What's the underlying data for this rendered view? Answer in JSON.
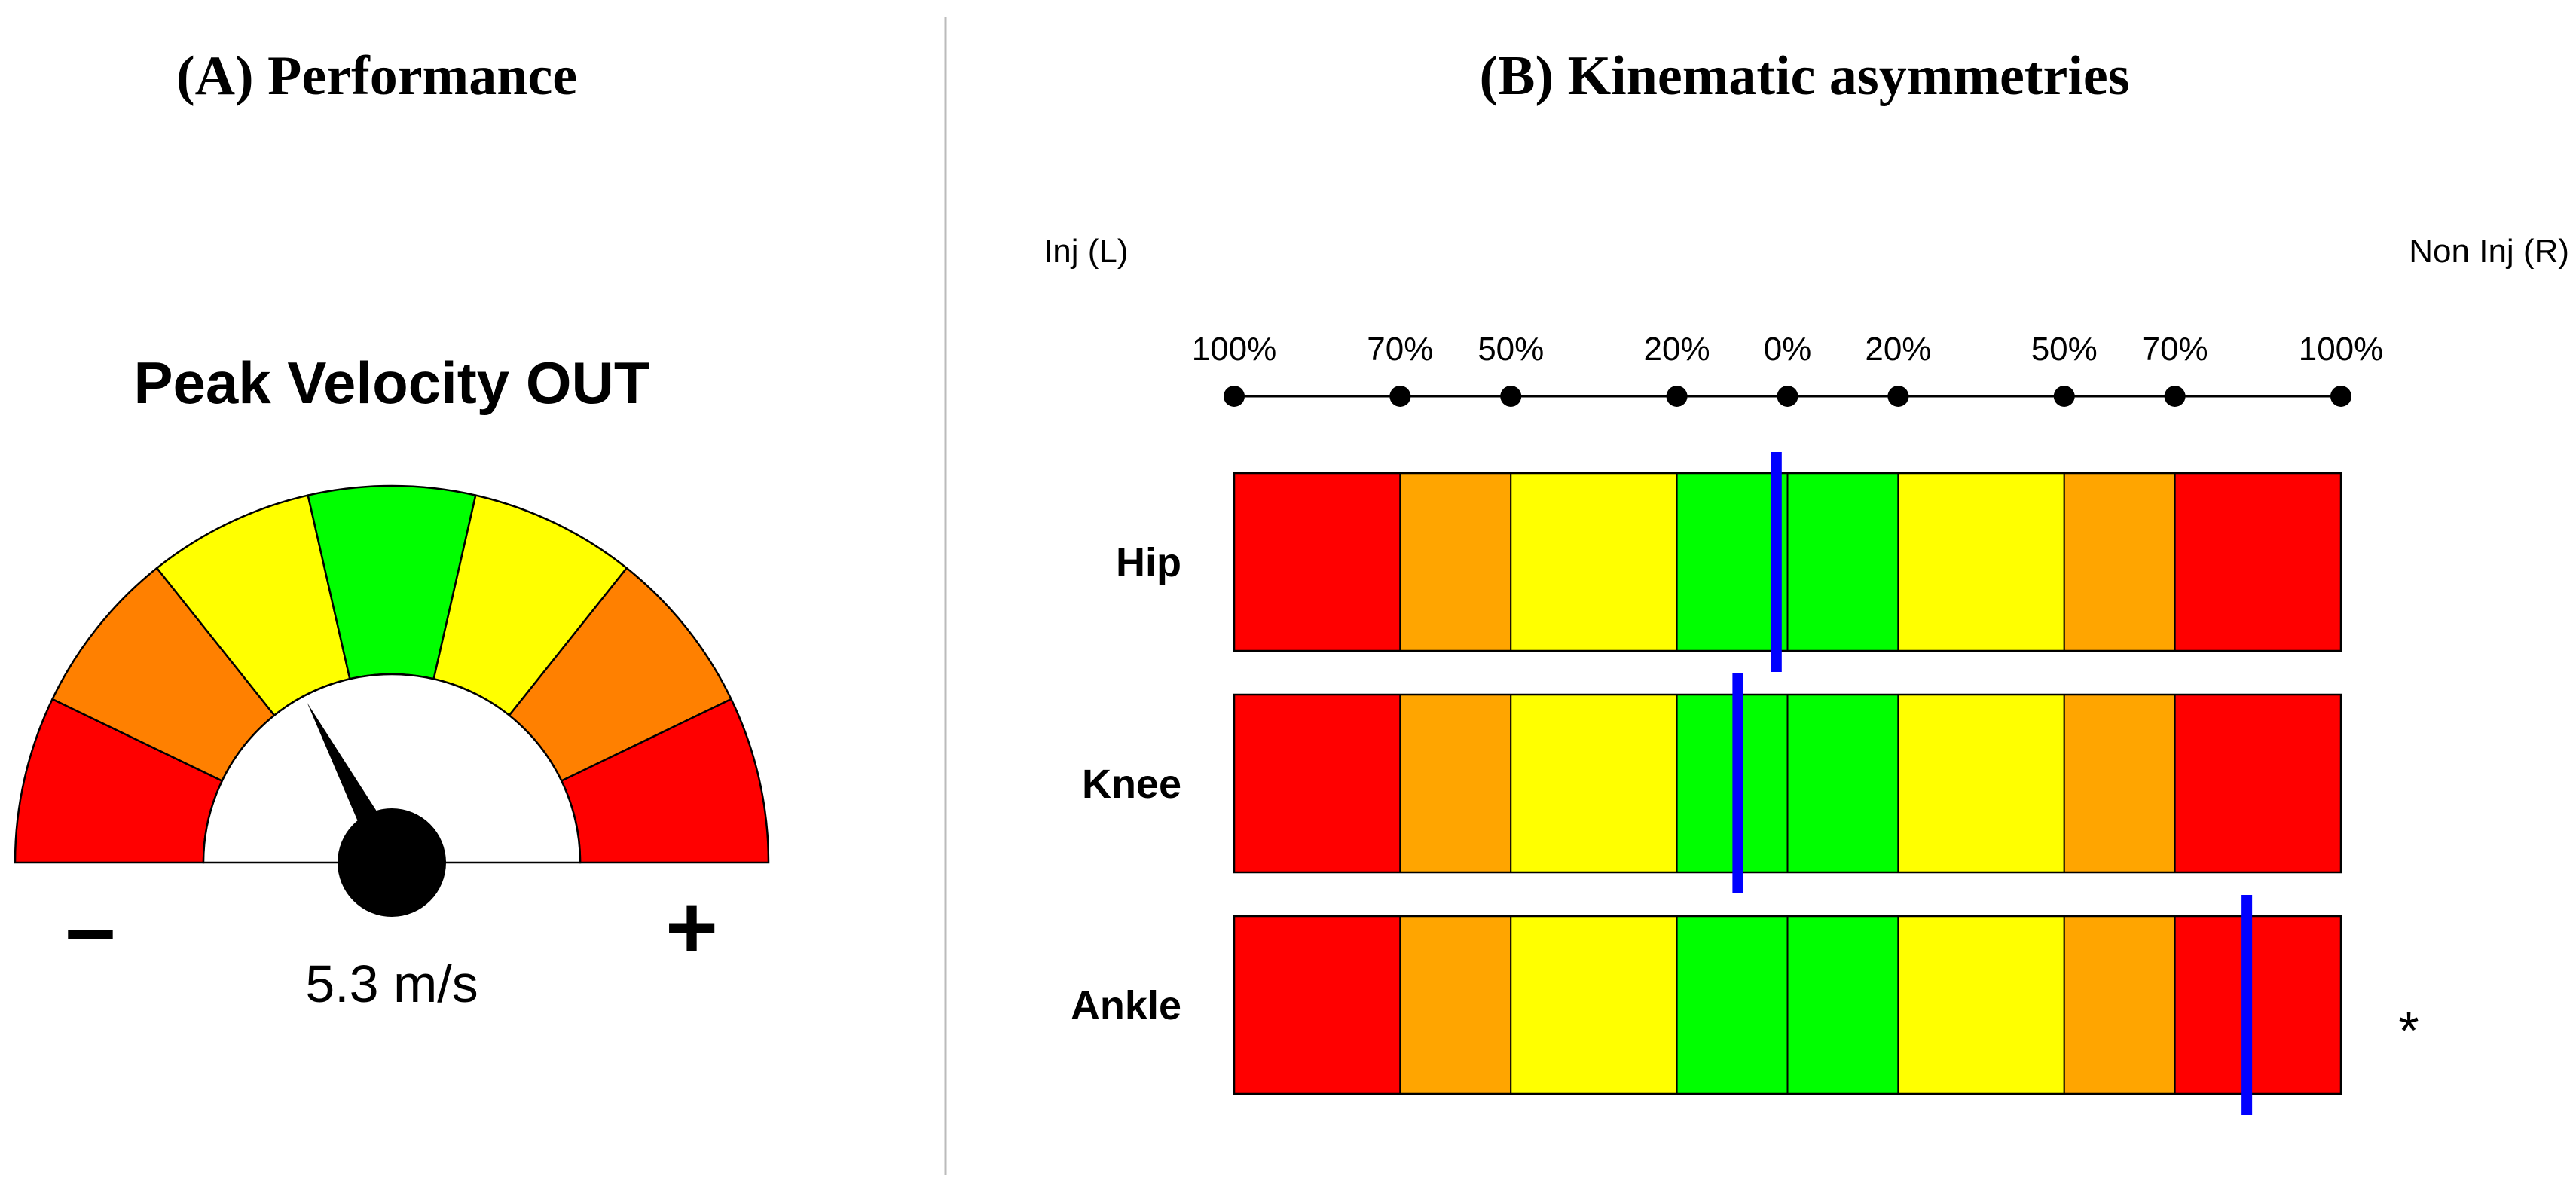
{
  "panels": {
    "a_title": "(A) Performance",
    "b_title": "(B) Kinematic asymmetries"
  },
  "colors": {
    "red": "#ff0000",
    "orange": "#ff8000",
    "orange_bar": "#ffa500",
    "yellow": "#ffff00",
    "green": "#00ff00",
    "marker": "#0000ff",
    "divider": "#bbbbbb"
  },
  "gauge": {
    "title": "Peak Velocity OUT",
    "minus_label": "–",
    "plus_label": "+",
    "readout": "5.3 m/s",
    "segments": [
      "red",
      "orange",
      "yellow",
      "green",
      "yellow",
      "orange",
      "red"
    ],
    "needle_fraction": 0.345
  },
  "chart_data": {
    "type": "asymmetry-bars",
    "title": "(B) Kinematic asymmetries",
    "left_side_label": "Inj (L)",
    "right_side_label": "Non Inj (R)",
    "scale_ticks": [
      {
        "label": "100%",
        "value": -100
      },
      {
        "label": "70%",
        "value": -70
      },
      {
        "label": "50%",
        "value": -50
      },
      {
        "label": "20%",
        "value": -20
      },
      {
        "label": "0%",
        "value": 0
      },
      {
        "label": "20%",
        "value": 20
      },
      {
        "label": "50%",
        "value": 50
      },
      {
        "label": "70%",
        "value": 70
      },
      {
        "label": "100%",
        "value": 100
      }
    ],
    "zones": [
      {
        "from": -100,
        "to": -70,
        "color": "red"
      },
      {
        "from": -70,
        "to": -50,
        "color": "orange_bar"
      },
      {
        "from": -50,
        "to": -20,
        "color": "yellow"
      },
      {
        "from": -20,
        "to": 0,
        "color": "green"
      },
      {
        "from": 0,
        "to": 20,
        "color": "green"
      },
      {
        "from": 20,
        "to": 50,
        "color": "yellow"
      },
      {
        "from": 50,
        "to": 70,
        "color": "orange_bar"
      },
      {
        "from": 70,
        "to": 100,
        "color": "red"
      }
    ],
    "rows": [
      {
        "label": "Hip",
        "asymmetry": -2,
        "flag": ""
      },
      {
        "label": "Knee",
        "asymmetry": -9,
        "flag": ""
      },
      {
        "label": "Ankle",
        "asymmetry": 83,
        "flag": "*"
      }
    ]
  }
}
